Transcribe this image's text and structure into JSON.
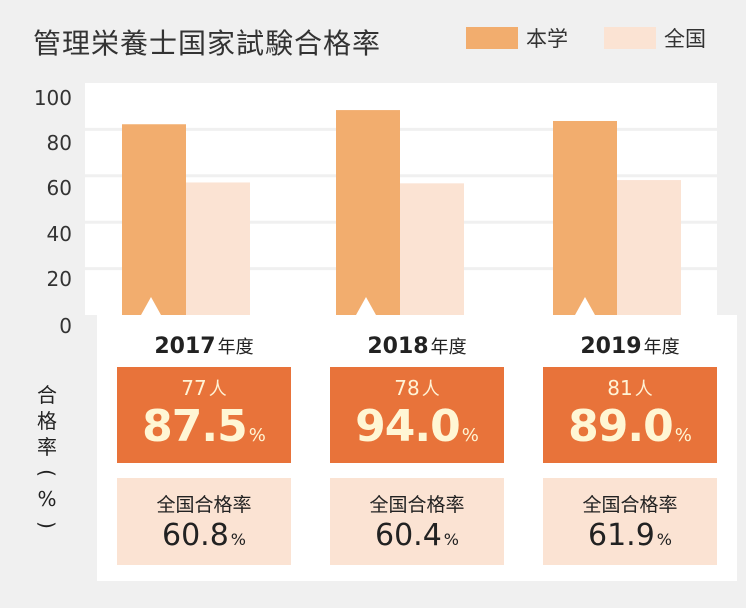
{
  "chart_data": {
    "type": "bar",
    "title": "管理栄養士国家試験合格率",
    "categories": [
      "2017",
      "2018",
      "2019"
    ],
    "series": [
      {
        "name": "本学",
        "values": [
          87.5,
          94.0,
          89.0
        ],
        "color": "#f2ad6e"
      },
      {
        "name": "全国",
        "values": [
          60.8,
          60.4,
          61.9
        ],
        "color": "#fbe3d3"
      }
    ],
    "ylim": [
      0,
      100
    ],
    "yticks": [
      "100",
      "80",
      "60",
      "40",
      "20",
      "0"
    ],
    "ylabel_chars": [
      "合",
      "格",
      "率",
      "(",
      "%",
      ")"
    ],
    "legend_position": "top-right",
    "grid": true
  },
  "years": [
    {
      "year": "2017",
      "suffix": "年度",
      "students": "77",
      "students_unit": "人",
      "rate": "87.5",
      "rate_unit": "%",
      "national_label": "全国合格率",
      "national_rate": "60.8",
      "national_unit": "%"
    },
    {
      "year": "2018",
      "suffix": "年度",
      "students": "78",
      "students_unit": "人",
      "rate": "94.0",
      "rate_unit": "%",
      "national_label": "全国合格率",
      "national_rate": "60.4",
      "national_unit": "%"
    },
    {
      "year": "2019",
      "suffix": "年度",
      "students": "81",
      "students_unit": "人",
      "rate": "89.0",
      "rate_unit": "%",
      "national_label": "全国合格率",
      "national_rate": "61.9",
      "national_unit": "%"
    }
  ],
  "colors": {
    "background": "#f0f0f0",
    "plot_background": "#ffffff",
    "school_bar": "#f2ad6e",
    "national_bar": "#fbe3d3",
    "school_box": "#e8733a",
    "national_box": "#fbe3d3",
    "gridline": "#f0f0f0"
  }
}
